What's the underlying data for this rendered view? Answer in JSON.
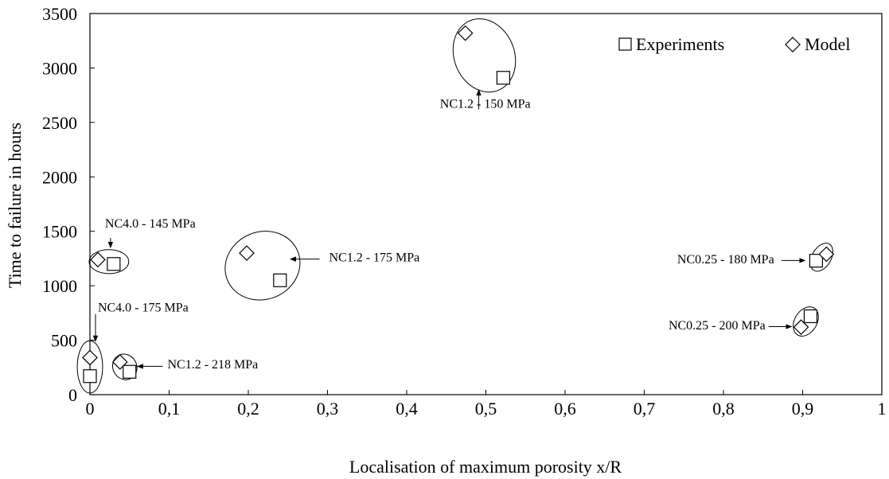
{
  "chart_data": {
    "type": "scatter",
    "xlabel": "Localisation of maximum porosity x/R",
    "ylabel": "Time to failure in hours",
    "xlim": [
      0,
      1
    ],
    "ylim": [
      0,
      3500
    ],
    "x_ticks": [
      0,
      0.1,
      0.2,
      0.3,
      0.4,
      0.5,
      0.6,
      0.7,
      0.8,
      0.9,
      1
    ],
    "x_tick_labels": [
      "0",
      "0,1",
      "0,2",
      "0,3",
      "0,4",
      "0,5",
      "0,6",
      "0,7",
      "0,8",
      "0,9",
      "1"
    ],
    "y_ticks": [
      0,
      500,
      1000,
      1500,
      2000,
      2500,
      3000,
      3500
    ],
    "y_tick_labels": [
      "0",
      "500",
      "1000",
      "1500",
      "2000",
      "2500",
      "3000",
      "3500"
    ],
    "grid": false,
    "legend_position": "top-right",
    "series": [
      {
        "name": "Experiments",
        "marker": "square",
        "points": [
          {
            "x": 0.522,
            "y": 2910
          },
          {
            "x": 0.03,
            "y": 1200
          },
          {
            "x": 0.24,
            "y": 1050
          },
          {
            "x": 0.0,
            "y": 170
          },
          {
            "x": 0.05,
            "y": 210
          },
          {
            "x": 0.917,
            "y": 1230
          },
          {
            "x": 0.91,
            "y": 720
          }
        ]
      },
      {
        "name": "Model",
        "marker": "diamond",
        "points": [
          {
            "x": 0.474,
            "y": 3320
          },
          {
            "x": 0.01,
            "y": 1240
          },
          {
            "x": 0.198,
            "y": 1300
          },
          {
            "x": 0.0,
            "y": 340
          },
          {
            "x": 0.038,
            "y": 300
          },
          {
            "x": 0.93,
            "y": 1290
          },
          {
            "x": 0.898,
            "y": 620
          }
        ]
      }
    ],
    "groups": [
      {
        "label": "NC1.2 - 150 MPa",
        "cx": 0.498,
        "cy": 3115,
        "rx": 0.038,
        "ry": 345,
        "rot": -22,
        "arrow_from": [
          0.491,
          2800
        ],
        "arrow_to": [
          0.491,
          2820
        ],
        "text_at": [
          0.442,
          2635
        ],
        "anchor": "start"
      },
      {
        "label": "NC4.0 - 145 MPa",
        "cx": 0.024,
        "cy": 1222,
        "rx": 0.025,
        "ry": 110,
        "rot": 0,
        "arrow_from": [
          0.026,
          1440
        ],
        "arrow_to": [
          0.026,
          1350
        ],
        "text_at": [
          0.019,
          1535
        ],
        "anchor": "start"
      },
      {
        "label": "NC1.2 - 175 MPa",
        "cx": 0.218,
        "cy": 1185,
        "rx": 0.048,
        "ry": 310,
        "rot": -22,
        "arrow_from": [
          0.29,
          1245
        ],
        "arrow_to": [
          0.253,
          1245
        ],
        "text_at": [
          0.302,
          1225
        ],
        "anchor": "start"
      },
      {
        "label": "NC4.0 - 175 MPa",
        "cx": 0.0,
        "cy": 255,
        "rx": 0.016,
        "ry": 240,
        "rot": 0,
        "arrow_from": [
          0.007,
          740
        ],
        "arrow_to": [
          0.007,
          490
        ],
        "text_at": [
          0.01,
          765
        ],
        "anchor": "start"
      },
      {
        "label": "NC1.2 - 218 MPa",
        "cx": 0.044,
        "cy": 255,
        "rx": 0.015,
        "ry": 120,
        "rot": -30,
        "arrow_from": [
          0.092,
          260
        ],
        "arrow_to": [
          0.06,
          260
        ],
        "text_at": [
          0.098,
          240
        ],
        "anchor": "start"
      },
      {
        "label": "NC0.25 - 180 MPa",
        "cx": 0.924,
        "cy": 1262,
        "rx": 0.012,
        "ry": 140,
        "rot": 30,
        "arrow_from": [
          0.873,
          1232
        ],
        "arrow_to": [
          0.903,
          1232
        ],
        "text_at": [
          0.864,
          1205
        ],
        "anchor": "end"
      },
      {
        "label": "NC0.25 - 200 MPa",
        "cx": 0.904,
        "cy": 672,
        "rx": 0.014,
        "ry": 145,
        "rot": 32,
        "arrow_from": [
          0.857,
          625
        ],
        "arrow_to": [
          0.886,
          625
        ],
        "text_at": [
          0.853,
          600
        ],
        "anchor": "end"
      }
    ]
  }
}
